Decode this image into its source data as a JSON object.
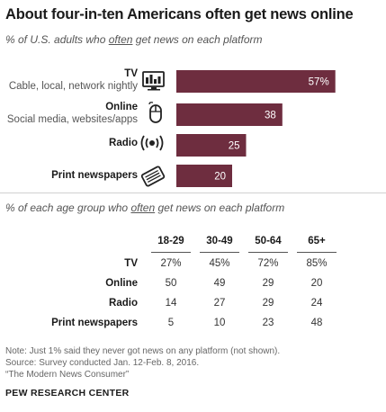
{
  "title": "About four-in-ten Americans often get news online",
  "subtitle": {
    "pre": "% of U.S. adults who ",
    "emph": "often",
    "post": " get news on each platform"
  },
  "colors": {
    "bar": "#6e2d3f",
    "bar_text": "#ffffff",
    "rule": "#d0d0d0"
  },
  "chart_data": [
    {
      "type": "bar",
      "orientation": "horizontal",
      "title": "About four-in-ten Americans often get news online",
      "categories": [
        "TV",
        "Online",
        "Radio",
        "Print newspapers"
      ],
      "category_subtitles": [
        "Cable, local, network nightly",
        "Social media, websites/apps",
        "",
        ""
      ],
      "category_icons": [
        "tv-icon",
        "mouse-icon",
        "radio-icon",
        "newspaper-icon"
      ],
      "values": [
        57,
        38,
        25,
        20
      ],
      "value_labels": [
        "57%",
        "38",
        "25",
        "20"
      ],
      "xlim": [
        0,
        100
      ],
      "grid": false
    },
    {
      "type": "table",
      "title": "% of each age group who often get news on each platform",
      "columns": [
        "18-29",
        "30-49",
        "50-64",
        "65+"
      ],
      "rows": [
        {
          "label": "TV",
          "values": [
            "27%",
            "45%",
            "72%",
            "85%"
          ]
        },
        {
          "label": "Online",
          "values": [
            "50",
            "49",
            "29",
            "20"
          ]
        },
        {
          "label": "Radio",
          "values": [
            "14",
            "27",
            "29",
            "24"
          ]
        },
        {
          "label": "Print newspapers",
          "values": [
            "5",
            "10",
            "23",
            "48"
          ]
        }
      ]
    }
  ],
  "table_subtitle": {
    "pre": "% of each age group who ",
    "emph": "often",
    "post": " get news on each platform"
  },
  "notes": [
    "Note: Just 1% said they never got news on any platform (not shown).",
    "Source: Survey conducted Jan. 12-Feb. 8, 2016.",
    "“The Modern News Consumer”"
  ],
  "source_org": "PEW RESEARCH CENTER"
}
